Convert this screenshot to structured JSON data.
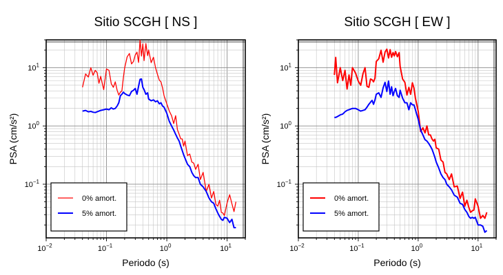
{
  "chart_data": [
    {
      "type": "line",
      "title": "Sitio SCGH [ NS ]",
      "xlabel": "Periodo (s)",
      "ylabel": "PSA (cm/s²)",
      "xscale": "log",
      "yscale": "log",
      "xlim": [
        0.01,
        20
      ],
      "ylim": [
        0.012,
        30
      ],
      "x_ticks": [
        0.01,
        0.1,
        1,
        10
      ],
      "y_ticks": [
        0.1,
        1,
        10
      ],
      "grid": true,
      "legend_position": "bottom-left",
      "series": [
        {
          "name": "0% amort.",
          "color": "#ff0000",
          "x": [
            0.04,
            0.045,
            0.05,
            0.055,
            0.06,
            0.065,
            0.07,
            0.075,
            0.08,
            0.09,
            0.1,
            0.11,
            0.12,
            0.13,
            0.14,
            0.15,
            0.16,
            0.17,
            0.18,
            0.19,
            0.2,
            0.22,
            0.24,
            0.26,
            0.28,
            0.3,
            0.32,
            0.34,
            0.36,
            0.38,
            0.4,
            0.42,
            0.45,
            0.48,
            0.5,
            0.55,
            0.6,
            0.65,
            0.7,
            0.75,
            0.8,
            0.85,
            0.9,
            1.0,
            1.1,
            1.2,
            1.3,
            1.4,
            1.5,
            1.6,
            1.7,
            1.8,
            1.9,
            2.0,
            2.2,
            2.4,
            2.6,
            2.8,
            3.0,
            3.3,
            3.6,
            4.0,
            4.5,
            5.0,
            5.5,
            6.0,
            6.5,
            7.0,
            7.5,
            8.0,
            8.5,
            9.0,
            10.0,
            11.0,
            12.0,
            13.0,
            14.0
          ],
          "values": [
            4.6,
            7.8,
            6.9,
            10.0,
            7.4,
            9.0,
            8.2,
            5.4,
            7.1,
            4.2,
            9.5,
            9.0,
            5.3,
            4.6,
            5.7,
            4.1,
            3.4,
            3.8,
            4.0,
            6.7,
            9.9,
            15.3,
            17.5,
            11.6,
            12.8,
            16.5,
            18.5,
            12.3,
            30.0,
            15.8,
            25.6,
            13.2,
            25.9,
            16.1,
            20.1,
            12.2,
            15.1,
            10.0,
            7.7,
            6.1,
            5.7,
            4.5,
            3.3,
            2.4,
            1.8,
            1.5,
            1.1,
            1.5,
            0.86,
            0.72,
            0.6,
            0.6,
            0.45,
            0.55,
            0.31,
            0.33,
            0.24,
            0.23,
            0.18,
            0.22,
            0.12,
            0.16,
            0.075,
            0.1,
            0.058,
            0.075,
            0.045,
            0.042,
            0.053,
            0.033,
            0.032,
            0.029,
            0.048,
            0.066,
            0.046,
            0.034,
            0.05
          ]
        },
        {
          "name": "5% amort.",
          "color": "#0000ff",
          "x": [
            0.04,
            0.045,
            0.05,
            0.055,
            0.06,
            0.065,
            0.07,
            0.075,
            0.08,
            0.09,
            0.1,
            0.11,
            0.12,
            0.13,
            0.14,
            0.15,
            0.16,
            0.17,
            0.18,
            0.19,
            0.2,
            0.22,
            0.24,
            0.26,
            0.28,
            0.3,
            0.32,
            0.34,
            0.36,
            0.38,
            0.4,
            0.42,
            0.45,
            0.48,
            0.5,
            0.55,
            0.6,
            0.65,
            0.7,
            0.75,
            0.8,
            0.85,
            0.9,
            1.0,
            1.1,
            1.2,
            1.3,
            1.4,
            1.5,
            1.6,
            1.7,
            1.8,
            1.9,
            2.0,
            2.2,
            2.4,
            2.6,
            2.8,
            3.0,
            3.3,
            3.6,
            4.0,
            4.5,
            5.0,
            5.5,
            6.0,
            6.5,
            7.0,
            7.5,
            8.0,
            8.5,
            9.0,
            10.0,
            11.0,
            12.0,
            13.0,
            14.0
          ],
          "values": [
            1.8,
            1.85,
            1.75,
            1.78,
            1.72,
            1.7,
            1.75,
            1.8,
            1.85,
            1.9,
            1.95,
            1.9,
            2.05,
            1.95,
            2.0,
            2.2,
            2.5,
            3.3,
            3.5,
            3.8,
            3.6,
            3.4,
            3.3,
            3.9,
            4.1,
            4.4,
            3.5,
            4.8,
            6.3,
            6.4,
            4.6,
            4.2,
            3.5,
            3.7,
            2.9,
            2.7,
            2.8,
            2.6,
            2.7,
            2.4,
            2.5,
            2.2,
            2.1,
            1.65,
            1.2,
            1.0,
            0.85,
            0.72,
            0.62,
            0.55,
            0.45,
            0.38,
            0.32,
            0.28,
            0.22,
            0.2,
            0.16,
            0.14,
            0.13,
            0.13,
            0.1,
            0.09,
            0.075,
            0.058,
            0.05,
            0.047,
            0.038,
            0.032,
            0.028,
            0.025,
            0.024,
            0.027,
            0.026,
            0.022,
            0.025,
            0.018,
            0.018
          ]
        }
      ]
    },
    {
      "type": "line",
      "title": "Sitio SCGH [ EW ]",
      "xlabel": "Periodo (s)",
      "ylabel": "PSA (cm/s²)",
      "xscale": "log",
      "yscale": "log",
      "xlim": [
        0.01,
        20
      ],
      "ylim": [
        0.012,
        30
      ],
      "x_ticks": [
        0.01,
        0.1,
        1,
        10
      ],
      "y_ticks": [
        0.1,
        1,
        10
      ],
      "grid": true,
      "legend_position": "bottom-left",
      "series": [
        {
          "name": "0% amort.",
          "color": "#ff0000",
          "x": [
            0.04,
            0.042,
            0.045,
            0.05,
            0.055,
            0.06,
            0.065,
            0.07,
            0.075,
            0.08,
            0.09,
            0.1,
            0.11,
            0.12,
            0.13,
            0.14,
            0.15,
            0.16,
            0.17,
            0.18,
            0.19,
            0.2,
            0.22,
            0.24,
            0.26,
            0.28,
            0.3,
            0.32,
            0.34,
            0.36,
            0.38,
            0.4,
            0.42,
            0.45,
            0.48,
            0.5,
            0.55,
            0.6,
            0.65,
            0.7,
            0.75,
            0.8,
            0.85,
            0.9,
            1.0,
            1.1,
            1.2,
            1.3,
            1.4,
            1.5,
            1.6,
            1.7,
            1.8,
            1.9,
            2.0,
            2.2,
            2.4,
            2.6,
            2.8,
            3.0,
            3.3,
            3.6,
            4.0,
            4.5,
            5.0,
            5.5,
            6.0,
            6.5,
            7.0,
            7.5,
            8.0,
            8.5,
            9.0,
            10.0,
            11.0,
            12.0,
            13.0,
            14.0
          ],
          "values": [
            7.5,
            15.0,
            5.5,
            10.0,
            6.0,
            9.0,
            4.3,
            7.5,
            5.0,
            10.0,
            8.1,
            5.9,
            5.0,
            7.9,
            10.0,
            4.8,
            4.6,
            6.4,
            6.2,
            5.7,
            6.6,
            12.8,
            14.2,
            19.9,
            12.4,
            18.5,
            20.8,
            14.7,
            20.4,
            15.1,
            18.2,
            15.9,
            18.9,
            15.4,
            18.1,
            10.5,
            6.4,
            5.6,
            3.4,
            4.6,
            3.5,
            5.5,
            4.5,
            3.0,
            1.8,
            0.8,
            0.93,
            0.76,
            1.0,
            0.7,
            0.7,
            0.6,
            0.55,
            0.59,
            0.42,
            0.4,
            0.26,
            0.24,
            0.16,
            0.15,
            0.12,
            0.15,
            0.09,
            0.093,
            0.057,
            0.073,
            0.042,
            0.053,
            0.04,
            0.033,
            0.035,
            0.036,
            0.056,
            0.042,
            0.026,
            0.029,
            0.026,
            0.033
          ]
        },
        {
          "name": "5% amort.",
          "color": "#0000ff",
          "x": [
            0.04,
            0.042,
            0.045,
            0.05,
            0.055,
            0.06,
            0.065,
            0.07,
            0.075,
            0.08,
            0.09,
            0.1,
            0.11,
            0.12,
            0.13,
            0.14,
            0.15,
            0.16,
            0.17,
            0.18,
            0.19,
            0.2,
            0.22,
            0.24,
            0.26,
            0.28,
            0.3,
            0.32,
            0.34,
            0.36,
            0.38,
            0.4,
            0.42,
            0.45,
            0.48,
            0.5,
            0.55,
            0.6,
            0.65,
            0.7,
            0.75,
            0.8,
            0.85,
            0.9,
            1.0,
            1.1,
            1.2,
            1.3,
            1.4,
            1.5,
            1.6,
            1.7,
            1.8,
            1.9,
            2.0,
            2.2,
            2.4,
            2.6,
            2.8,
            3.0,
            3.3,
            3.6,
            4.0,
            4.5,
            5.0,
            5.5,
            6.0,
            6.5,
            7.0,
            7.5,
            8.0,
            8.5,
            9.0,
            10.0,
            11.0,
            12.0,
            13.0,
            14.0
          ],
          "values": [
            1.4,
            1.4,
            1.45,
            1.55,
            1.6,
            1.75,
            1.85,
            1.9,
            1.95,
            2.0,
            2.0,
            1.9,
            1.8,
            1.85,
            1.9,
            2.1,
            2.35,
            2.55,
            2.75,
            2.35,
            2.8,
            3.5,
            3.7,
            3.1,
            4.5,
            5.6,
            3.9,
            5.9,
            3.5,
            4.7,
            3.3,
            3.9,
            4.4,
            3.3,
            3.1,
            4.1,
            3.0,
            2.5,
            2.5,
            1.9,
            2.5,
            2.3,
            2.3,
            1.9,
            1.3,
            0.85,
            0.7,
            0.58,
            0.55,
            0.5,
            0.45,
            0.4,
            0.34,
            0.29,
            0.24,
            0.19,
            0.15,
            0.13,
            0.12,
            0.1,
            0.09,
            0.08,
            0.065,
            0.06,
            0.047,
            0.045,
            0.037,
            0.033,
            0.028,
            0.026,
            0.027,
            0.026,
            0.027,
            0.02,
            0.02,
            0.019,
            0.015,
            0.016
          ]
        }
      ]
    }
  ]
}
